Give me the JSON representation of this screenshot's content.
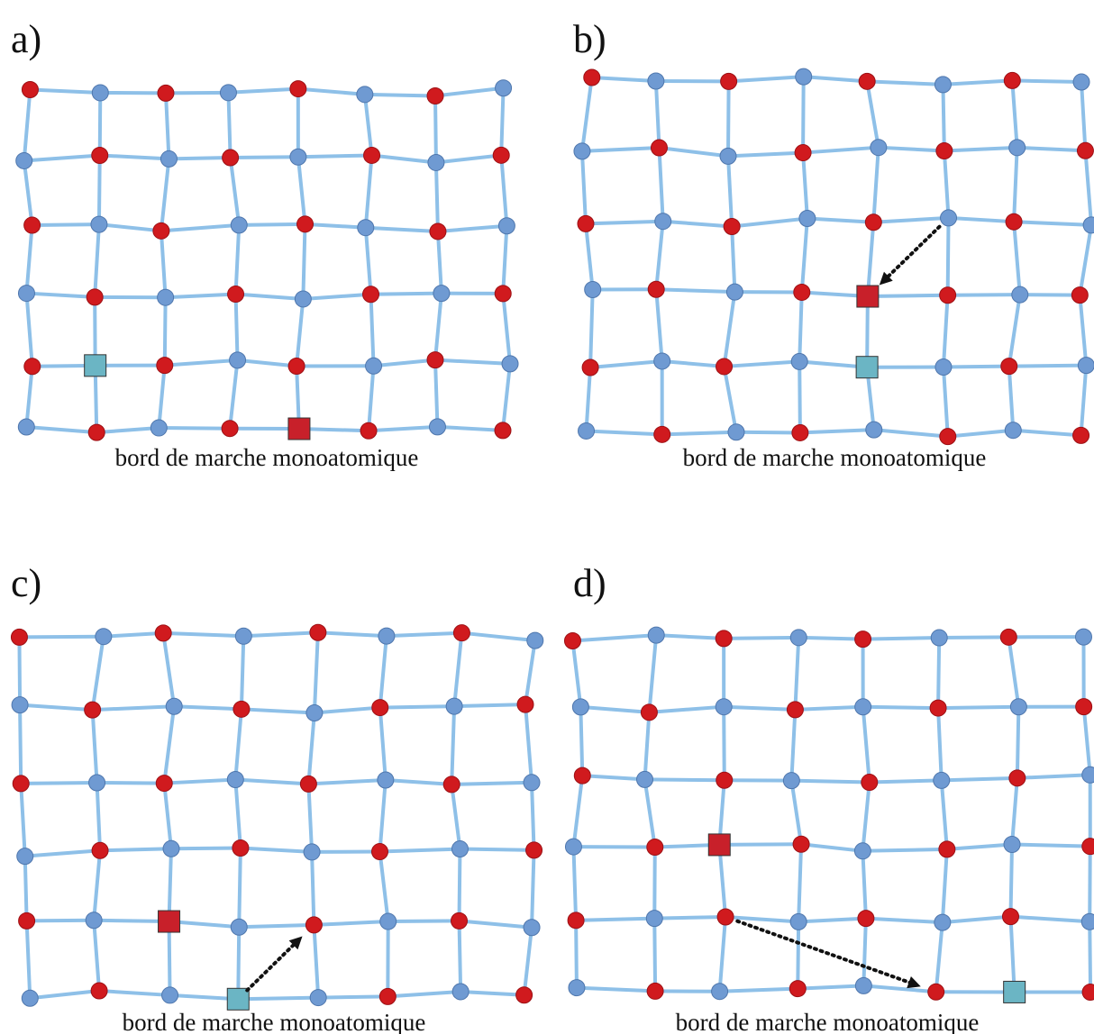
{
  "colors": {
    "bond": "#8ec0e8",
    "red_atom": "#d01a1e",
    "blue_atom": "#6f9ad2",
    "red_square": "#c8202a",
    "cyan_square": "#6bb5c4",
    "arrow": "#111111"
  },
  "panels": [
    {
      "label": "a)",
      "caption": "bord de marche monoatomique",
      "parity": 0,
      "squares": [
        [
          5,
          4,
          "red"
        ],
        [
          4,
          1,
          "cyan"
        ]
      ],
      "arrow": null
    },
    {
      "label": "b)",
      "caption": "bord de marche monoatomique",
      "parity": 0,
      "squares": [
        [
          3,
          4,
          "red"
        ],
        [
          4,
          4,
          "cyan"
        ]
      ],
      "arrow": [
        [
          2,
          5
        ],
        [
          3,
          4
        ]
      ]
    },
    {
      "label": "c)",
      "caption": "bord de marche monoatomique",
      "parity": 0,
      "squares": [
        [
          4,
          2,
          "red"
        ],
        [
          5,
          3,
          "cyan"
        ]
      ],
      "arrow": [
        [
          5,
          3
        ],
        [
          4,
          4
        ]
      ]
    },
    {
      "label": "d)",
      "caption": "bord de marche monoatomique",
      "parity": 0,
      "squares": [
        [
          3,
          2,
          "red"
        ],
        [
          5,
          6,
          "cyan"
        ]
      ],
      "arrow": [
        [
          4,
          2
        ],
        [
          5,
          5
        ]
      ]
    }
  ]
}
